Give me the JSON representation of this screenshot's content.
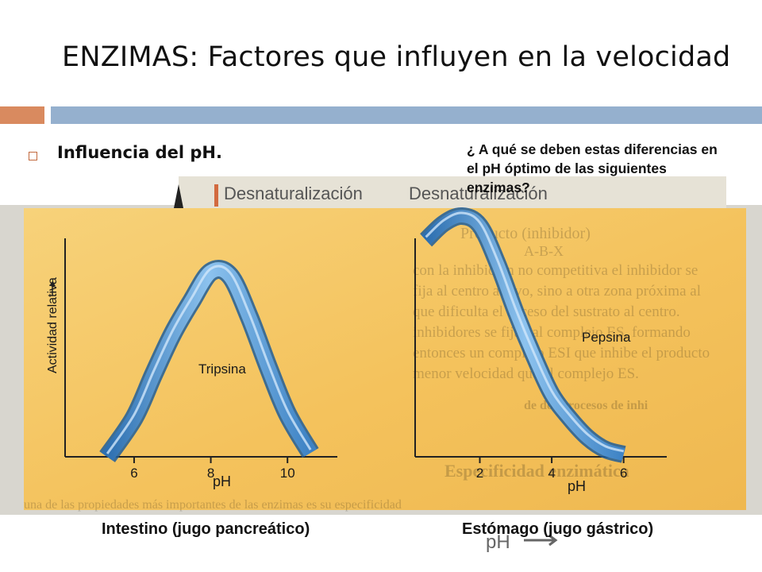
{
  "slide": {
    "title": "ENZIMAS: Factores que influyen en la velocidad",
    "bullet": "Influencia del pH.",
    "question": "¿ A qué se deben estas diferencias en el pH óptimo de las siguientes enzimas?",
    "colors": {
      "accent_orange": "#d98a5f",
      "accent_blue": "#95b0ce",
      "panel_bg": "#f4c766",
      "curve": "#5f9fd6"
    }
  },
  "figure": {
    "top_labels": [
      "Desnaturalización",
      "Desnaturalización"
    ],
    "bottom_label": "pH",
    "background_text": [
      "Producto (inhibidor)",
      "A-B-X",
      "con la inhibición no competitiva el inhibidor se",
      "fija al centro activo, sino a otra zona próxima al",
      "que dificulta el acceso del sustrato al centro.",
      "inhibidores se fijan al complejo ES, formando",
      "entonces un complejo ESI que inhibe el producto",
      "menor velocidad que el complejo ES.",
      "de dos procesos de inhi",
      "Especificidad enzimática",
      "una de las propiedades más importantes de las enzimas es su especificidad"
    ]
  },
  "chart_data": [
    {
      "type": "line",
      "title": "Intestino (jugo pancreático)",
      "xlabel": "pH",
      "ylabel": "Actividad relativa",
      "xticks": [
        6,
        8,
        10
      ],
      "xlim": [
        4.2,
        11.3
      ],
      "ylim": [
        0,
        1
      ],
      "series": [
        {
          "name": "Tripsina",
          "x": [
            5.3,
            6,
            6.5,
            7,
            7.5,
            8,
            8.5,
            9,
            9.5,
            10,
            10.6
          ],
          "y": [
            0.0,
            0.2,
            0.42,
            0.63,
            0.8,
            0.95,
            0.93,
            0.72,
            0.46,
            0.22,
            0.02
          ]
        }
      ]
    },
    {
      "type": "line",
      "title": "Estómago (jugo gástrico)",
      "xlabel": "pH",
      "ylabel": "",
      "xticks": [
        2,
        4,
        6
      ],
      "xlim": [
        0.2,
        7.2
      ],
      "ylim": [
        0,
        1
      ],
      "series": [
        {
          "name": "Pepsina",
          "x": [
            0.5,
            1,
            1.5,
            2,
            2.5,
            3,
            3.5,
            4,
            4.5,
            5,
            5.5,
            6
          ],
          "y": [
            0.9,
            0.97,
            1.0,
            0.96,
            0.8,
            0.6,
            0.42,
            0.26,
            0.16,
            0.08,
            0.03,
            0.01
          ]
        }
      ]
    }
  ]
}
